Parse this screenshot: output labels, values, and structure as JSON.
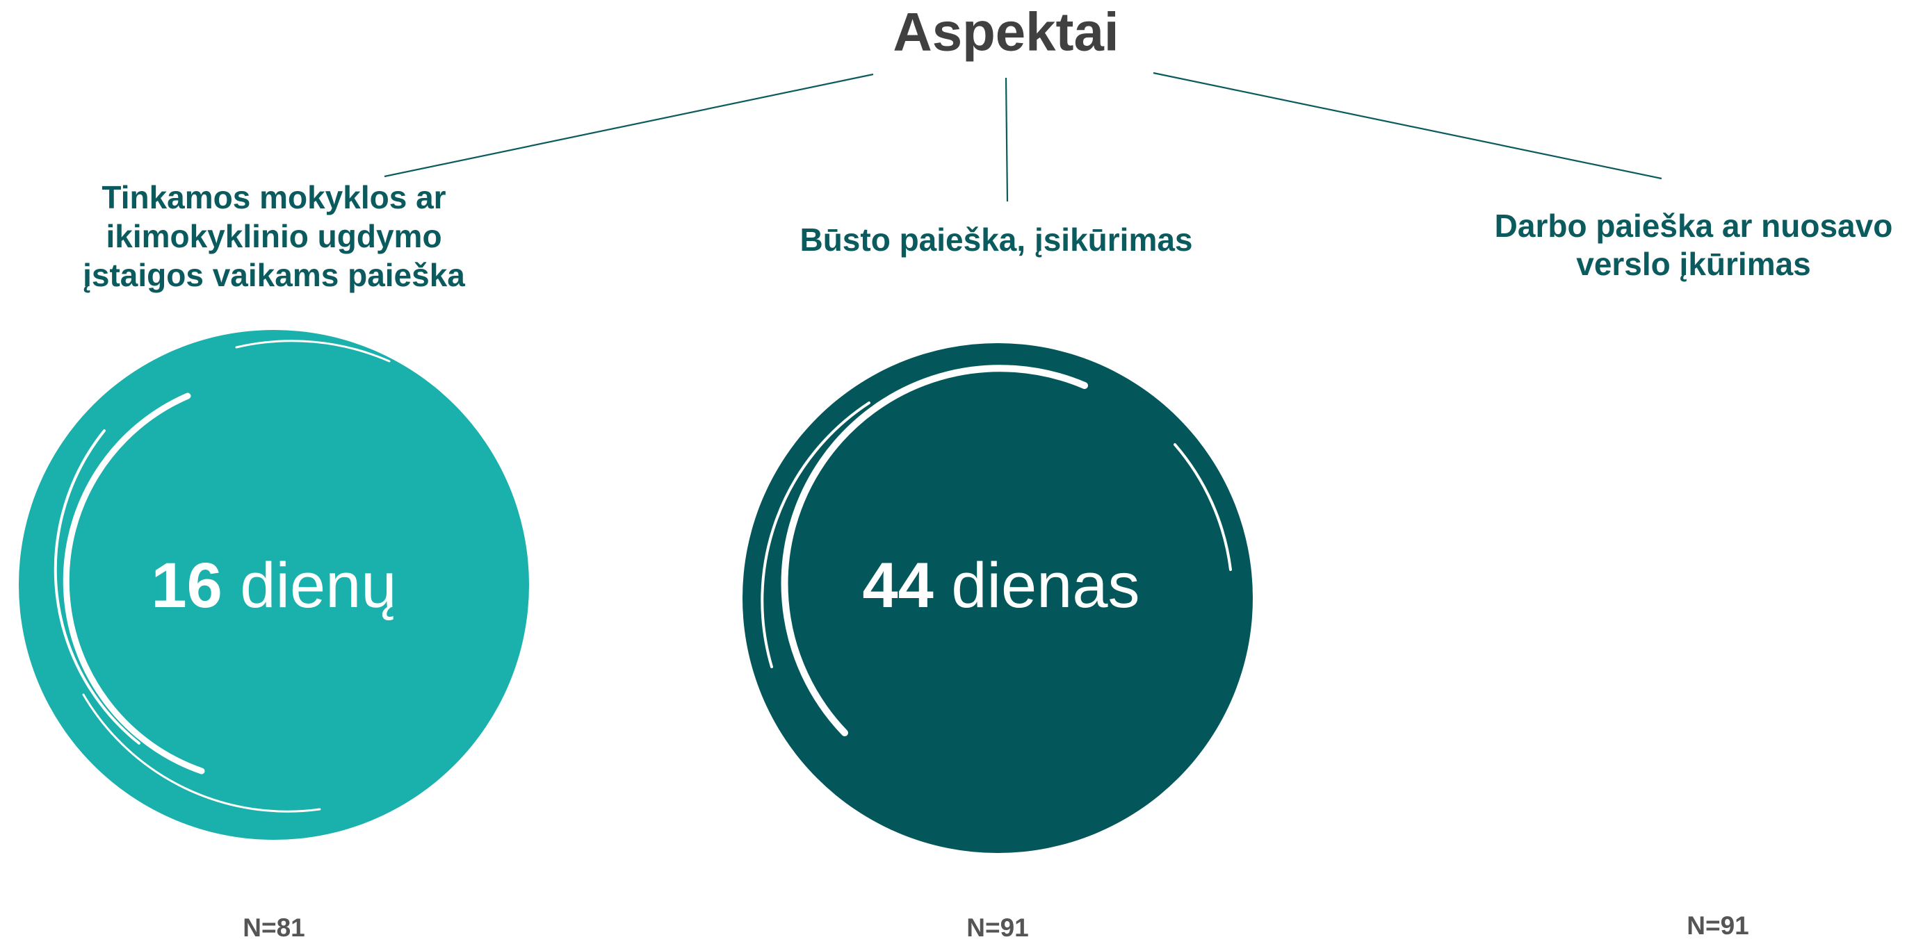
{
  "title": "Aspektai",
  "aspects": [
    {
      "label": [
        "Tinkamos mokyklos ar",
        "ikimokyklinio ugdymo",
        "įstaigos vaikams paieška"
      ],
      "number": "16",
      "unit": "dienų",
      "n": "N=81"
    },
    {
      "label": [
        "Būsto paieška, įsikūrimas"
      ],
      "number": "44",
      "unit": "dienas",
      "n": "N=91"
    },
    {
      "label": [
        "Darbo paieška ar nuosavo",
        "verslo įkūrimas"
      ],
      "n": "N=91"
    }
  ]
}
